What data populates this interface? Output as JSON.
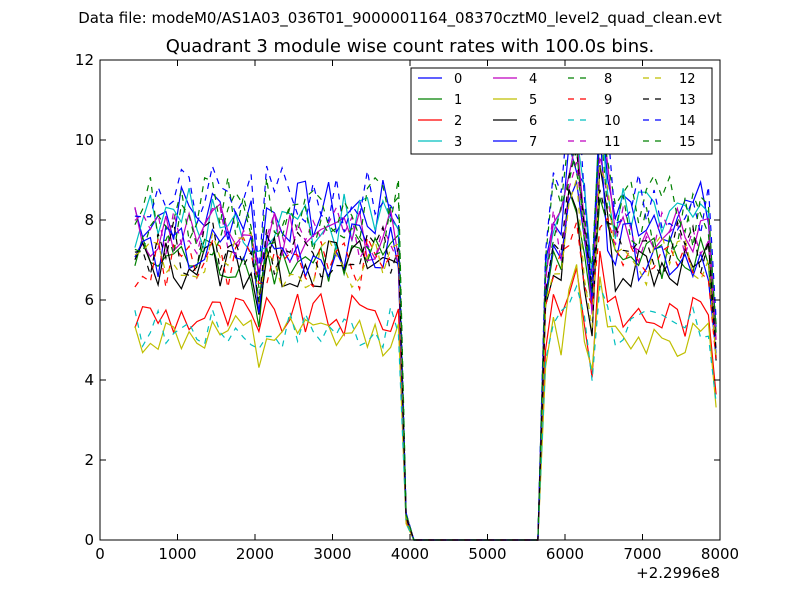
{
  "figure": {
    "suptitle": "Data file: modeM0/AS1A03_036T01_9000001164_08370cztM0_level2_quad_clean.evt",
    "title": "Quadrant 3 module wise count rates with 100.0s bins."
  },
  "chart_data": {
    "type": "line",
    "title": "Quadrant 3 module wise count rates with 100.0s bins.",
    "xlabel": "",
    "ylabel": "",
    "x_offset_label": "+2.2996e8",
    "xlim": [
      0,
      8000
    ],
    "ylim": [
      0,
      12
    ],
    "xticks": [
      "0",
      "1000",
      "2000",
      "3000",
      "4000",
      "5000",
      "6000",
      "7000",
      "8000"
    ],
    "yticks": [
      "0",
      "2",
      "4",
      "6",
      "8",
      "10",
      "12"
    ],
    "grid": false,
    "legend_position": "top-right",
    "legend_columns": 4,
    "series": [
      {
        "name": "0",
        "color": "#0000ff",
        "dash": "solid",
        "level": 8.2
      },
      {
        "name": "1",
        "color": "#008000",
        "dash": "solid",
        "level": 7.0
      },
      {
        "name": "2",
        "color": "#ff0000",
        "dash": "solid",
        "level": 5.6
      },
      {
        "name": "3",
        "color": "#00bfbf",
        "dash": "solid",
        "level": 8.0
      },
      {
        "name": "4",
        "color": "#bf00bf",
        "dash": "solid",
        "level": 7.7
      },
      {
        "name": "5",
        "color": "#bfbf00",
        "dash": "solid",
        "level": 5.1
      },
      {
        "name": "6",
        "color": "#000000",
        "dash": "solid",
        "level": 6.9
      },
      {
        "name": "7",
        "color": "#0000ff",
        "dash": "solid",
        "level": 7.2
      },
      {
        "name": "8",
        "color": "#008000",
        "dash": "dashed",
        "level": 8.3
      },
      {
        "name": "9",
        "color": "#ff0000",
        "dash": "dashed",
        "level": 6.9
      },
      {
        "name": "10",
        "color": "#00bfbf",
        "dash": "dashed",
        "level": 5.3
      },
      {
        "name": "11",
        "color": "#bf00bf",
        "dash": "dashed",
        "level": 7.6
      },
      {
        "name": "12",
        "color": "#bfbf00",
        "dash": "dashed",
        "level": 7.0
      },
      {
        "name": "13",
        "color": "#000000",
        "dash": "dashed",
        "level": 7.3
      },
      {
        "name": "14",
        "color": "#0000ff",
        "dash": "dashed",
        "level": 8.5
      },
      {
        "name": "15",
        "color": "#008000",
        "dash": "dashed",
        "level": 7.9
      }
    ],
    "x_start": 450,
    "x_step": 100,
    "gap": {
      "drop_start": 3850,
      "zero_start": 4050,
      "zero_end": 5650,
      "rise_end": 5850
    },
    "x_end": 7950,
    "peaks": [
      {
        "x": 6050,
        "delta": 1.2
      },
      {
        "x": 6150,
        "delta": 1.6
      },
      {
        "x": 6450,
        "delta": 2.0
      },
      {
        "x": 6550,
        "delta": 1.0
      }
    ],
    "dips": [
      {
        "x": 2050,
        "delta": -1.0
      },
      {
        "x": 6350,
        "delta": -1.6
      }
    ]
  }
}
